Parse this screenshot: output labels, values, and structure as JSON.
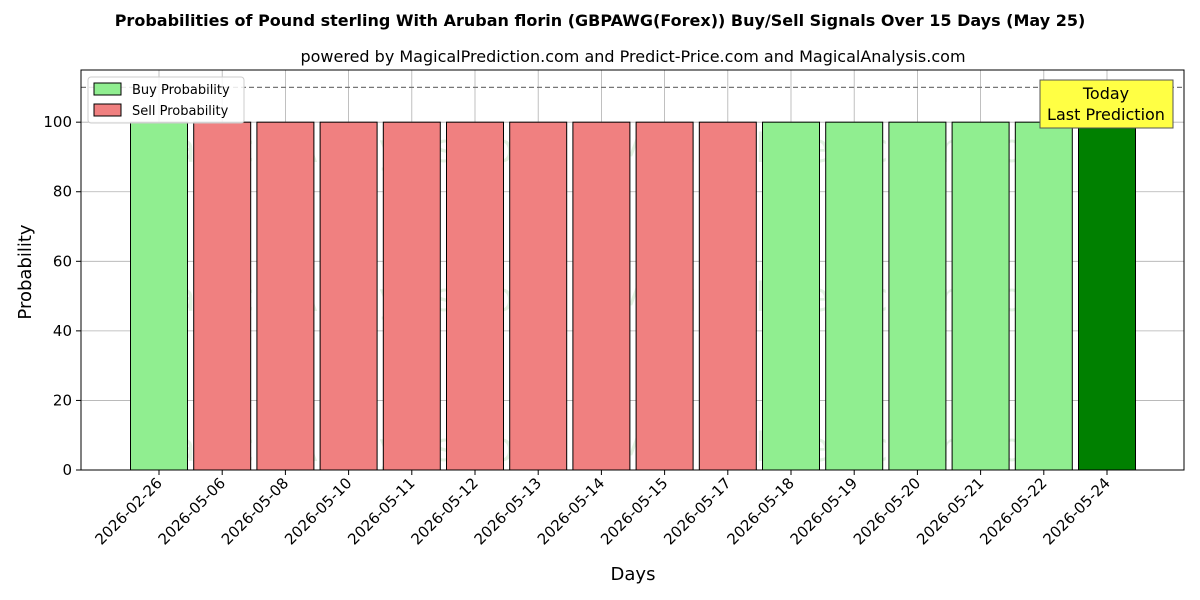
{
  "chart_data": {
    "type": "bar",
    "title": "Probabilities of Pound sterling With Aruban florin (GBPAWG(Forex)) Buy/Sell Signals Over 15 Days (May 25)",
    "subtitle": "powered by MagicalPrediction.com and Predict-Price.com and MagicalAnalysis.com",
    "xlabel": "Days",
    "ylabel": "Probability",
    "ylim": [
      0,
      115
    ],
    "yticks": [
      0,
      20,
      40,
      60,
      80,
      100
    ],
    "reference_line": 110,
    "grid": true,
    "legend_position": "top-left",
    "categories": [
      "2026-02-26",
      "2026-05-06",
      "2026-05-08",
      "2026-05-10",
      "2026-05-11",
      "2026-05-12",
      "2026-05-13",
      "2026-05-14",
      "2026-05-15",
      "2026-05-17",
      "2026-05-18",
      "2026-05-19",
      "2026-05-20",
      "2026-05-21",
      "2026-05-22",
      "2026-05-24"
    ],
    "values": [
      100,
      100,
      100,
      100,
      100,
      100,
      100,
      100,
      100,
      100,
      100,
      100,
      100,
      100,
      100,
      100
    ],
    "signals": [
      "buy",
      "sell",
      "sell",
      "sell",
      "sell",
      "sell",
      "sell",
      "sell",
      "sell",
      "sell",
      "buy",
      "buy",
      "buy",
      "buy",
      "buy",
      "buy-today"
    ],
    "series": [
      {
        "name": "Buy Probability",
        "color": "#90ee90"
      },
      {
        "name": "Sell Probability",
        "color": "#f08080"
      }
    ],
    "today_color": "#008000",
    "annotation": {
      "lines": [
        "Today",
        "Last Prediction"
      ],
      "color": "#ffff44"
    },
    "watermarks": [
      "MagicalAnalysis.com",
      "MagicalPrediction.com"
    ]
  }
}
